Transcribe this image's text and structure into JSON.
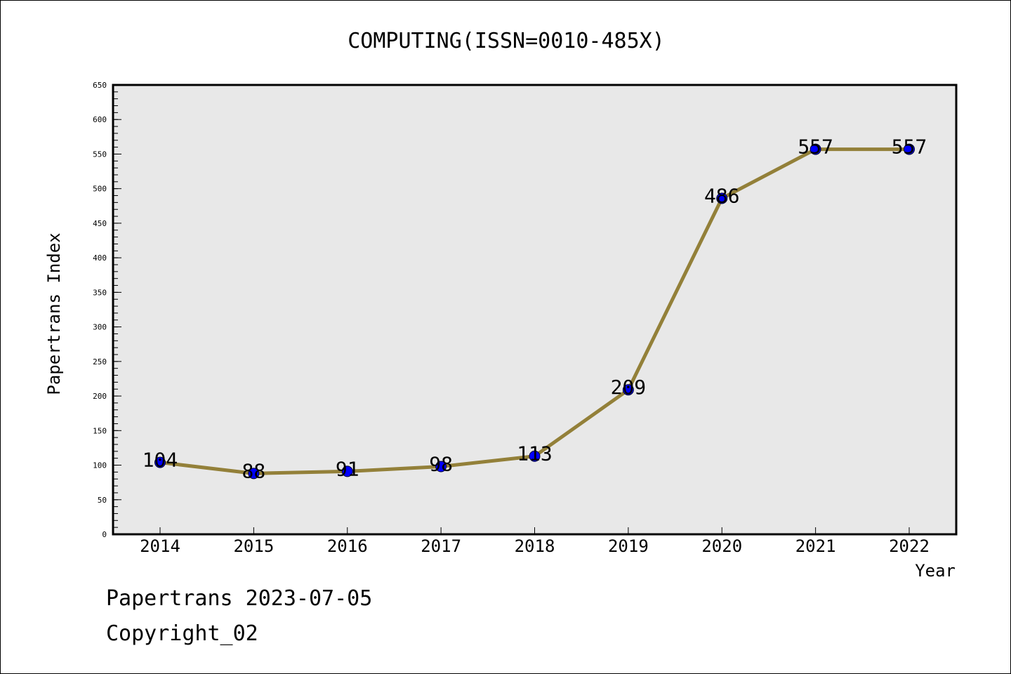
{
  "chart_data": {
    "type": "line",
    "title": "COMPUTING(ISSN=0010-485X)",
    "xlabel": "Year",
    "ylabel": "Papertrans Index",
    "categories": [
      "2014",
      "2015",
      "2016",
      "2017",
      "2018",
      "2019",
      "2020",
      "2021",
      "2022"
    ],
    "series": [
      {
        "values": [
          104,
          88,
          91,
          98,
          113,
          209,
          486,
          557,
          557
        ],
        "line_color": "#938039",
        "marker_color": "#0000ff"
      }
    ],
    "data_labels": [
      "104",
      "88",
      "91",
      "98",
      "113",
      "209",
      "486",
      "557",
      "557"
    ],
    "y_ticks": [
      "0",
      "50",
      "100",
      "150",
      "200",
      "250",
      "300",
      "350",
      "400",
      "450",
      "500",
      "550",
      "600",
      "650"
    ],
    "ylim": [
      0,
      650
    ],
    "y_minor_step": 10,
    "grid": false,
    "plot_background": "#e8e8e8"
  },
  "footer": {
    "line1": "Papertrans 2023-07-05",
    "line2": "Copyright_02"
  }
}
